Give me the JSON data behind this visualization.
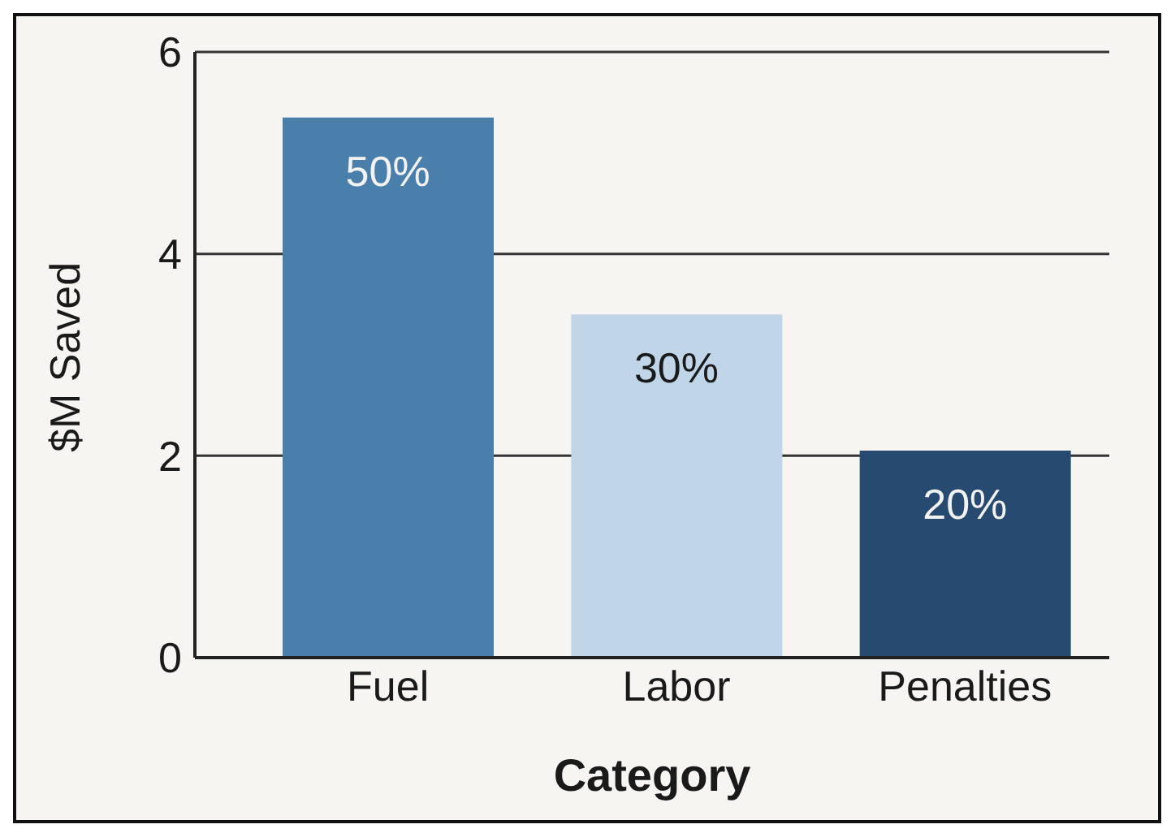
{
  "chart_data": {
    "type": "bar",
    "xlabel": "Category",
    "ylabel": "$M Saved",
    "categories": [
      "Fuel",
      "Labor",
      "Penalties"
    ],
    "values": [
      5.35,
      3.4,
      2.05
    ],
    "colors": [
      "#4a7eab",
      "#c0d6e8",
      "#264a70"
    ],
    "annotations": [
      {
        "text": "50%",
        "x": "Fuel",
        "y": 5.35
      },
      {
        "text": "30%",
        "x": "Labor",
        "y": 3.4
      },
      {
        "text": "20%",
        "x": "Penalties",
        "y": 2.05
      }
    ],
    "ylim": [
      0,
      6
    ],
    "yticks": [
      0,
      2,
      4,
      6
    ],
    "grid": "y"
  }
}
